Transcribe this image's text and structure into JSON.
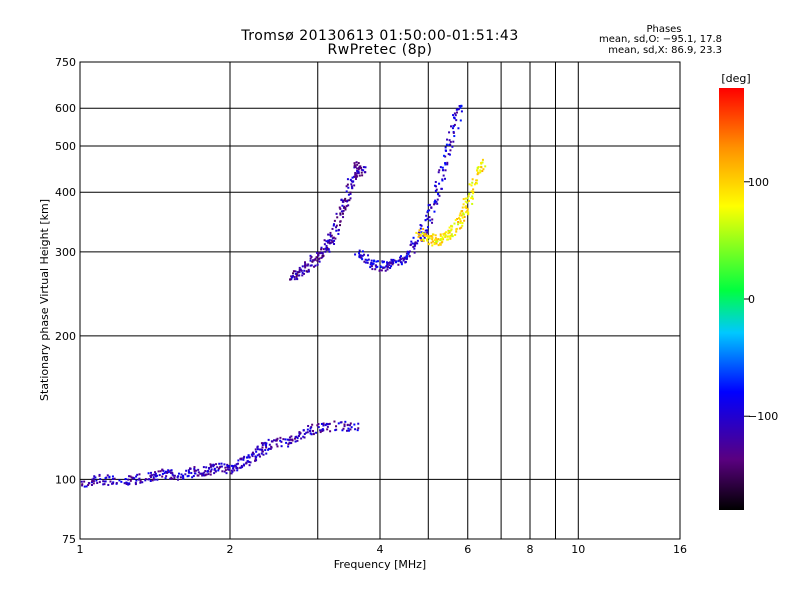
{
  "chart_data": {
    "type": "scatter",
    "title": "Tromsø 20130613 01:50:00-01:51:43",
    "subtitle": "RwPretec (8p)",
    "xlabel": "Frequency [MHz]",
    "ylabel": "Stationary phase Virtual Height [km]",
    "x_scale": "log",
    "y_scale": "log",
    "xlim": [
      1,
      16
    ],
    "ylim": [
      75,
      750
    ],
    "x_ticks": [
      1,
      2,
      4,
      6,
      8,
      10,
      16
    ],
    "x_minor_gridlines": [
      3,
      5,
      7,
      9
    ],
    "y_ticks": [
      75,
      100,
      200,
      300,
      400,
      500,
      600,
      750
    ],
    "y_gridlines": [
      100,
      200,
      300,
      400,
      500,
      600
    ],
    "grid": true,
    "phase_stats": {
      "heading": "Phases",
      "line_o": "mean, sd,O: −95.1, 17.8",
      "line_x": "mean, sd,X:  86.9, 23.3"
    },
    "colorbar": {
      "label": "[deg]",
      "range": [
        -180,
        180
      ],
      "ticks": [
        100,
        0,
        -100
      ],
      "tick_labels": [
        "100",
        "0",
        "−100"
      ],
      "colormap": "rainbow (black-purple-blue-cyan-green-yellow-red)"
    },
    "traces": [
      {
        "name_note": "low E/F trace",
        "x": [
          1.0,
          1.1,
          1.2,
          1.3,
          1.4,
          1.5,
          1.6,
          1.7,
          1.8,
          1.9,
          2.0,
          2.1,
          2.2,
          2.3,
          2.4,
          2.6,
          2.8,
          3.0,
          3.3,
          3.6
        ],
        "y": [
          98,
          100,
          99,
          100,
          101,
          103,
          102,
          104,
          104,
          106,
          105,
          108,
          110,
          115,
          118,
          120,
          125,
          128,
          130,
          128
        ],
        "phase_deg": -110
      },
      {
        "name_note": "lower F cusp",
        "x": [
          2.65,
          2.75,
          2.9,
          3.0,
          3.1,
          3.2,
          3.3,
          3.4,
          3.5,
          3.6,
          3.7
        ],
        "y": [
          265,
          270,
          285,
          290,
          300,
          320,
          350,
          380,
          420,
          460,
          440
        ],
        "phase_deg": -120
      },
      {
        "name_note": "upper F trace",
        "x": [
          3.6,
          3.8,
          4.0,
          4.2,
          4.4,
          4.6,
          4.8,
          5.0,
          5.2,
          5.4,
          5.6,
          5.8
        ],
        "y": [
          300,
          285,
          280,
          282,
          288,
          300,
          320,
          350,
          400,
          460,
          540,
          610
        ],
        "phase_deg": -100
      },
      {
        "name_note": "X-mode branch",
        "x": [
          4.8,
          5.0,
          5.2,
          5.4,
          5.6,
          5.8,
          6.0,
          6.2,
          6.4
        ],
        "y": [
          330,
          320,
          315,
          320,
          330,
          350,
          380,
          420,
          460
        ],
        "phase_deg": 90
      }
    ]
  }
}
